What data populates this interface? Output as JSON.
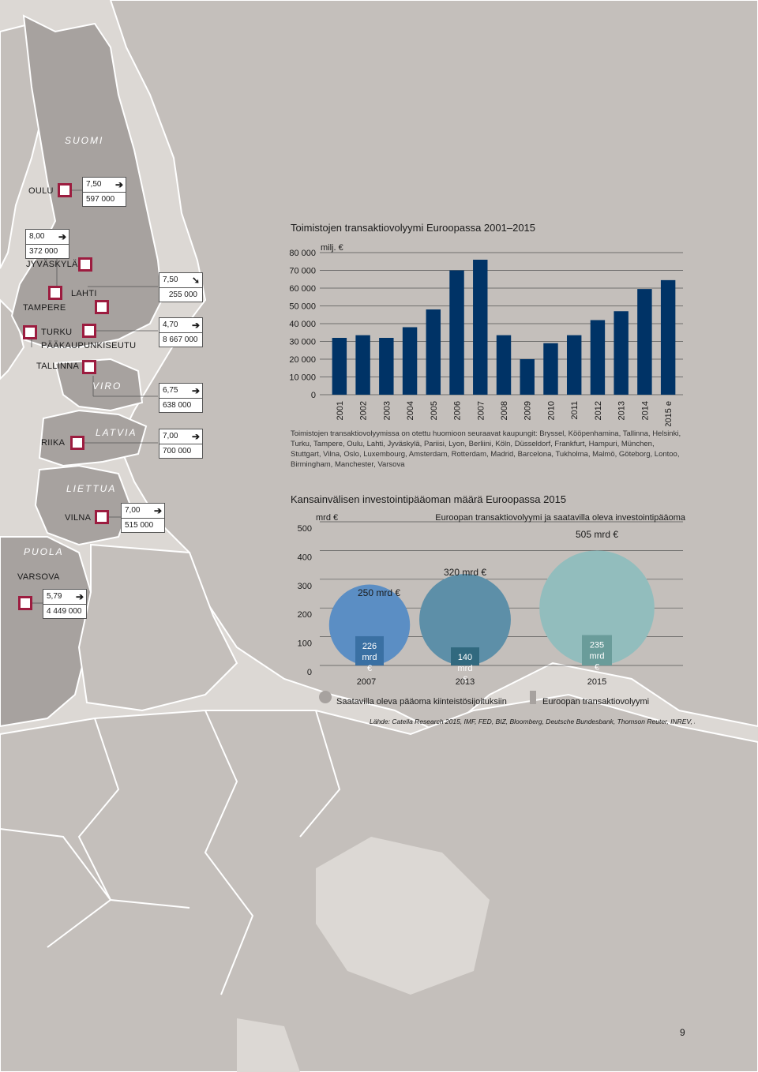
{
  "map": {
    "countries": [
      {
        "key": "suomi",
        "name": "SUOMI"
      },
      {
        "key": "viro",
        "name": "VIRO"
      },
      {
        "key": "latvia",
        "name": "LATVIA"
      },
      {
        "key": "liettua",
        "name": "LIETTUA"
      },
      {
        "key": "puola",
        "name": "PUOLA"
      }
    ],
    "cities": {
      "oulu": {
        "name": "OULU",
        "rate": "7,50",
        "volume": "597 000",
        "trend": "➔"
      },
      "jyvaskyla": {
        "name": "JYVÄSKYLÄ",
        "rate": "8,00",
        "volume": "372 000",
        "trend": "➔"
      },
      "lahti": {
        "name": "LAHTI",
        "rate": "7,50",
        "volume": "255 000",
        "trend": "➘"
      },
      "tampere": {
        "name": "TAMPERE"
      },
      "turku": {
        "name": "TURKU"
      },
      "paakaupunkiseutu": {
        "name": "PÄÄKAUPUNKISEUTU",
        "rate": "4,70",
        "volume": "8 667 000",
        "trend": "➔"
      },
      "tallinna": {
        "name": "TALLINNA",
        "rate": "6,75",
        "volume": "638 000",
        "trend": "➔"
      },
      "riika": {
        "name": "RIIKA",
        "rate": "7,00",
        "volume": "700 000",
        "trend": "➔"
      },
      "vilna": {
        "name": "VILNA",
        "rate": "7,00",
        "volume": "515 000",
        "trend": "➔"
      },
      "varsova": {
        "name": "VARSOVA",
        "rate": "5,79",
        "volume": "4 449 000",
        "trend": "➔"
      }
    },
    "colors": {
      "sea": "#dcd8d4",
      "land_focus": "#a7a29f",
      "land_other": "#c4bfbb",
      "marker": "#9c1c3f"
    }
  },
  "chart_data": [
    {
      "type": "bar",
      "title": "Toimistojen transaktiovolyymi Euroopassa 2001–2015",
      "ylabel": "milj. €",
      "ylim": [
        0,
        80000
      ],
      "yticks": [
        0,
        10000,
        20000,
        30000,
        40000,
        50000,
        60000,
        70000,
        80000
      ],
      "ytick_labels": [
        "0",
        "10 000",
        "20 000",
        "30 000",
        "40 000",
        "50 000",
        "60 000",
        "70 000",
        "80 000"
      ],
      "categories": [
        "2001",
        "2002",
        "2003",
        "2004",
        "2005",
        "2006",
        "2007",
        "2008",
        "2009",
        "2010",
        "2011",
        "2012",
        "2013",
        "2014",
        "2015 e"
      ],
      "values": [
        32000,
        33500,
        32000,
        38000,
        48000,
        70000,
        76000,
        33500,
        20000,
        29000,
        33500,
        42000,
        47000,
        59500,
        64500
      ],
      "color": "#003366",
      "grid": true
    },
    {
      "type": "bubble",
      "title": "Kansainvälisen investointipääoman määrä Euroopassa 2015",
      "subtitle": "Euroopan transaktiovolyymi ja saatavilla oleva investointipääoma",
      "ylabel": "mrd €",
      "ylim": [
        0,
        500
      ],
      "yticks": [
        0,
        100,
        200,
        300,
        400,
        500
      ],
      "ytick_labels": [
        "0",
        "100",
        "200",
        "300",
        "400",
        "500"
      ],
      "categories": [
        "2007",
        "2013",
        "2015"
      ],
      "series": [
        {
          "name": "Saatavilla oleva pääoma kiinteistösijoituksiin",
          "values": [
            250,
            320,
            505
          ],
          "labels": [
            "250 mrd €",
            "320 mrd €",
            "505 mrd €"
          ],
          "colors": [
            "#5b8ec4",
            "#5d8fa8",
            "#92bdbd"
          ]
        },
        {
          "name": "Euroopan transaktiovolyymi",
          "values": [
            226,
            140,
            235
          ],
          "labels_num": [
            "226",
            "140",
            "235"
          ],
          "labels_unit": [
            "mrd",
            "mrd",
            "mrd"
          ],
          "labels_cur": [
            "€",
            "€",
            "€"
          ],
          "colors": [
            "#3a70a3",
            "#31697f",
            "#6a9c9a"
          ]
        }
      ],
      "source": "Lähde: Catella Research 2015, IMF, FED, BIZ, Bloomberg, Deutsche Bundesbank, Thomson Reuter, INREV, RCA."
    }
  ],
  "notes": {
    "chart1_note": "Toimistojen transaktiovolyymissa on otettu huomioon seuraavat kaupungit: Bryssel, Kööpenhamina, Tallinna, Helsinki, Turku, Tampere, Oulu, Lahti, Jyväskylä, Pariisi, Lyon, Berliini, Köln, Düsseldorf, Frankfurt, Hampuri, München, Stuttgart, Vilna, Oslo, Luxembourg, Amsterdam, Rotterdam, Madrid, Barcelona, Tukholma, Malmö, Göteborg, Lontoo, Birmingham, Manchester, Varsova"
  },
  "page": {
    "number": "9"
  }
}
